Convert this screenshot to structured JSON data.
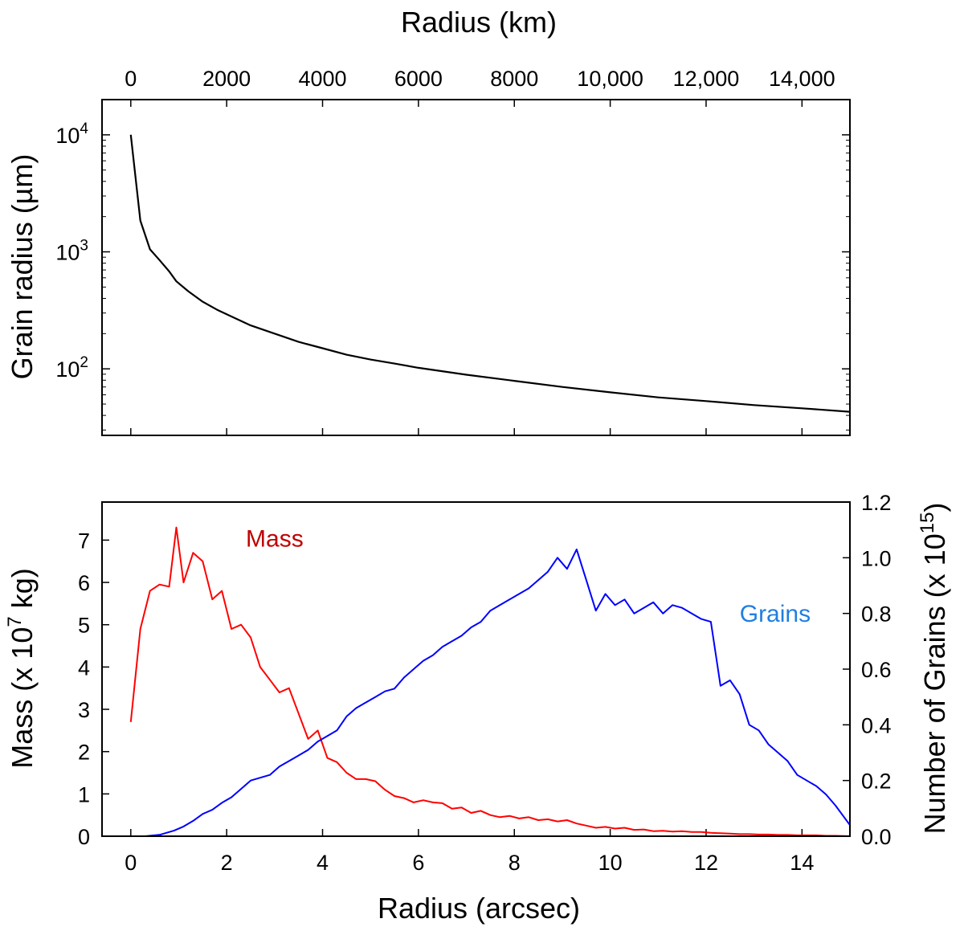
{
  "chart_data": [
    {
      "type": "line",
      "id": "grain-radius-panel",
      "xlabel_top": "Radius (km)",
      "top_ticks": [
        "0",
        "2000",
        "4000",
        "6000",
        "8000",
        "10,000",
        "12,000",
        "14,000"
      ],
      "top_tick_values": [
        0,
        2000,
        4000,
        6000,
        8000,
        10000,
        12000,
        14000
      ],
      "ylabel": "Grain radius (µm)",
      "yscale": "log",
      "ylim": [
        27,
        20000
      ],
      "xlim_arcsec": [
        -0.6,
        15.0
      ],
      "y_ticks": [
        {
          "base": "10",
          "exp": "4",
          "value": 10000
        },
        {
          "base": "10",
          "exp": "3",
          "value": 1000
        },
        {
          "base": "10",
          "exp": "2",
          "value": 100
        }
      ],
      "series": [
        {
          "name": "Grain radius",
          "color": "#000000",
          "x": [
            0.0,
            0.2,
            0.4,
            0.6,
            0.8,
            0.95,
            1.2,
            1.5,
            1.8,
            2.1,
            2.5,
            3.0,
            3.5,
            4.0,
            4.5,
            5.0,
            5.5,
            6.0,
            7.0,
            8.0,
            9.0,
            10.0,
            11.0,
            12.0,
            13.0,
            14.0,
            15.0
          ],
          "y": [
            10000,
            1850,
            1050,
            850,
            680,
            560,
            460,
            375,
            320,
            280,
            235,
            200,
            170,
            150,
            132,
            120,
            111,
            102,
            89,
            79,
            70,
            63,
            57,
            53,
            49,
            46,
            43
          ]
        }
      ]
    },
    {
      "type": "line",
      "id": "mass-grains-panel",
      "xlabel": "Radius (arcsec)",
      "xlim": [
        -0.6,
        15.0
      ],
      "x_ticks": [
        0,
        2,
        4,
        6,
        8,
        10,
        12,
        14
      ],
      "ylabel_left": {
        "prefix": "Mass (x 10",
        "exp": "7",
        "suffix": "  kg)"
      },
      "ylim_left": [
        0,
        7.9
      ],
      "y_ticks_left": [
        0,
        1,
        2,
        3,
        4,
        5,
        6,
        7
      ],
      "ylabel_right": {
        "prefix": "Number of Grains (x 10",
        "exp": "15",
        "suffix": ")"
      },
      "ylim_right": [
        0,
        1.2
      ],
      "y_ticks_right": [
        "0.0",
        "0.2",
        "0.4",
        "0.6",
        "0.8",
        "1.0",
        "1.2"
      ],
      "y_tick_values_right": [
        0.0,
        0.2,
        0.4,
        0.6,
        0.8,
        1.0,
        1.2
      ],
      "annotations": [
        {
          "text": "Mass",
          "color": "#c00000",
          "x": 2.4,
          "y": 6.85,
          "axis": "left"
        },
        {
          "text": "Grains",
          "color": "#1f7fe0",
          "x": 12.7,
          "y": 0.77,
          "axis": "right"
        }
      ],
      "series": [
        {
          "name": "Mass",
          "axis": "left",
          "color": "#ff0000",
          "x": [
            0.0,
            0.2,
            0.4,
            0.6,
            0.8,
            0.95,
            1.1,
            1.3,
            1.5,
            1.7,
            1.9,
            2.1,
            2.3,
            2.5,
            2.7,
            2.9,
            3.1,
            3.3,
            3.5,
            3.7,
            3.9,
            4.1,
            4.3,
            4.5,
            4.7,
            4.9,
            5.1,
            5.3,
            5.5,
            5.7,
            5.9,
            6.1,
            6.3,
            6.5,
            6.7,
            6.9,
            7.1,
            7.3,
            7.5,
            7.7,
            7.9,
            8.1,
            8.3,
            8.5,
            8.7,
            8.9,
            9.1,
            9.3,
            9.5,
            9.7,
            9.9,
            10.1,
            10.3,
            10.5,
            10.7,
            10.9,
            11.1,
            11.3,
            11.5,
            11.7,
            11.9,
            12.1,
            12.3,
            12.5,
            12.7,
            12.9,
            13.1,
            13.3,
            13.5,
            13.7,
            13.9,
            14.1,
            14.3,
            14.5,
            14.7,
            15.0
          ],
          "y": [
            2.7,
            4.9,
            5.8,
            5.95,
            5.9,
            7.3,
            6.0,
            6.7,
            6.5,
            5.6,
            5.8,
            4.9,
            5.0,
            4.7,
            4.0,
            3.7,
            3.4,
            3.5,
            2.9,
            2.3,
            2.5,
            1.85,
            1.75,
            1.5,
            1.35,
            1.35,
            1.3,
            1.1,
            0.95,
            0.9,
            0.8,
            0.85,
            0.8,
            0.78,
            0.65,
            0.68,
            0.55,
            0.6,
            0.5,
            0.45,
            0.48,
            0.42,
            0.45,
            0.38,
            0.4,
            0.35,
            0.38,
            0.3,
            0.25,
            0.2,
            0.22,
            0.18,
            0.2,
            0.15,
            0.16,
            0.12,
            0.13,
            0.11,
            0.12,
            0.1,
            0.1,
            0.08,
            0.07,
            0.06,
            0.05,
            0.05,
            0.04,
            0.04,
            0.03,
            0.03,
            0.02,
            0.02,
            0.02,
            0.01,
            0.01,
            0.0
          ]
        },
        {
          "name": "Grains",
          "axis": "right",
          "color": "#0000ff",
          "x": [
            0.0,
            0.3,
            0.6,
            0.9,
            1.1,
            1.3,
            1.5,
            1.7,
            1.9,
            2.1,
            2.3,
            2.5,
            2.7,
            2.9,
            3.1,
            3.3,
            3.5,
            3.7,
            3.9,
            4.1,
            4.3,
            4.5,
            4.7,
            4.9,
            5.1,
            5.3,
            5.5,
            5.7,
            5.9,
            6.1,
            6.3,
            6.5,
            6.7,
            6.9,
            7.1,
            7.3,
            7.5,
            7.7,
            7.9,
            8.1,
            8.3,
            8.5,
            8.7,
            8.9,
            9.1,
            9.3,
            9.5,
            9.7,
            9.9,
            10.1,
            10.3,
            10.5,
            10.7,
            10.9,
            11.1,
            11.3,
            11.5,
            11.7,
            11.9,
            12.1,
            12.3,
            12.5,
            12.7,
            12.9,
            13.1,
            13.3,
            13.5,
            13.7,
            13.9,
            14.1,
            14.3,
            14.5,
            14.7,
            15.0
          ],
          "y": [
            0.0,
            0.0,
            0.005,
            0.02,
            0.035,
            0.055,
            0.08,
            0.095,
            0.12,
            0.14,
            0.17,
            0.2,
            0.21,
            0.22,
            0.25,
            0.27,
            0.29,
            0.31,
            0.34,
            0.36,
            0.38,
            0.43,
            0.46,
            0.48,
            0.5,
            0.52,
            0.53,
            0.57,
            0.6,
            0.63,
            0.65,
            0.68,
            0.7,
            0.72,
            0.75,
            0.77,
            0.81,
            0.83,
            0.85,
            0.87,
            0.89,
            0.92,
            0.95,
            1.0,
            0.96,
            1.03,
            0.92,
            0.81,
            0.87,
            0.83,
            0.85,
            0.8,
            0.82,
            0.84,
            0.8,
            0.83,
            0.82,
            0.8,
            0.78,
            0.77,
            0.54,
            0.56,
            0.51,
            0.4,
            0.38,
            0.33,
            0.3,
            0.27,
            0.22,
            0.2,
            0.18,
            0.15,
            0.11,
            0.04
          ]
        }
      ]
    }
  ]
}
